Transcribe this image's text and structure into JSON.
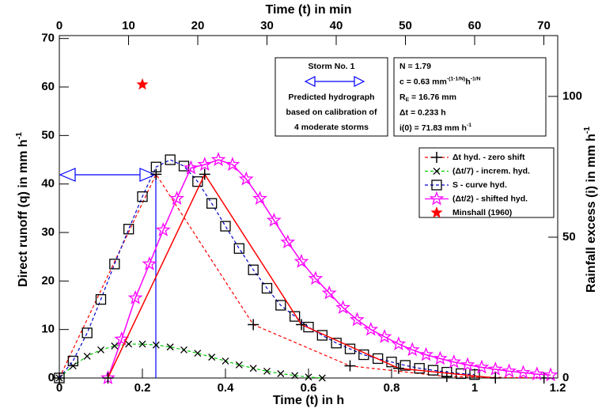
{
  "chart_data": {
    "type": "line",
    "xlabel": "Time (t) in h",
    "x2label": "Time (t) in min",
    "ylabel": [
      {
        "t": "Direct runoff (q) in mm h"
      },
      {
        "sup": "-1"
      }
    ],
    "y2label": [
      {
        "t": "Rainfall excess (i) in mm h"
      },
      {
        "sup": "-1"
      }
    ],
    "xlim": [
      0,
      1.2
    ],
    "xticks": [
      0,
      0.2,
      0.4,
      0.6,
      0.8,
      1,
      1.2
    ],
    "x2lim": [
      0,
      72
    ],
    "x2ticks": [
      0,
      10,
      20,
      30,
      40,
      50,
      60,
      70
    ],
    "ylim": [
      0,
      70.6
    ],
    "yticks": [
      0,
      10,
      20,
      30,
      40,
      50,
      60,
      70
    ],
    "y2lim": [
      0,
      121.6
    ],
    "y2ticks": [
      0,
      50,
      100
    ],
    "legend": "upper right",
    "series": [
      {
        "name": "Δt hyd. - zero shift",
        "color": "#ff0000",
        "dash": true,
        "marker": "plus",
        "marker_color": "#000000",
        "x": [
          0,
          0.233,
          0.467,
          0.7,
          0.933,
          1.167
        ],
        "values": [
          0,
          42,
          11,
          2.5,
          0.3,
          0
        ]
      },
      {
        "name": "(Δt/7) - increm. hyd.",
        "color": "#00cc00",
        "dash": true,
        "marker": "cross",
        "marker_color": "#000000",
        "x": [
          0,
          0.033,
          0.067,
          0.1,
          0.133,
          0.167,
          0.2,
          0.233,
          0.267,
          0.3,
          0.333,
          0.367,
          0.4,
          0.433,
          0.467,
          0.5,
          0.533,
          0.567,
          0.6,
          0.633
        ],
        "values": [
          0,
          2.5,
          4.5,
          5.8,
          6.6,
          7,
          7,
          6.8,
          6.4,
          5.8,
          5.1,
          4.3,
          3.5,
          2.7,
          2,
          1.4,
          0.9,
          0.5,
          0.2,
          0
        ]
      },
      {
        "name": "S - curve hyd.",
        "color": "#0000cc",
        "dash": true,
        "marker": "square",
        "marker_color": "#000000",
        "x": [
          0,
          0.033,
          0.067,
          0.1,
          0.133,
          0.167,
          0.2,
          0.233,
          0.267,
          0.3,
          0.333,
          0.367,
          0.4,
          0.433,
          0.467,
          0.5,
          0.533,
          0.567,
          0.6,
          0.633,
          0.667,
          0.7,
          0.733,
          0.767,
          0.8,
          0.833,
          0.867,
          0.9,
          0.933,
          0.967,
          1.0
        ],
        "values": [
          0,
          3.5,
          9.3,
          16.2,
          23.5,
          30.7,
          37.4,
          43.5,
          45,
          43.7,
          40.5,
          36,
          31.3,
          26.7,
          22.3,
          18.5,
          15,
          12.7,
          10.5,
          8.8,
          7.2,
          6,
          4.8,
          4,
          3.3,
          2.6,
          2,
          1.6,
          1.2,
          0.9,
          0.7
        ]
      },
      {
        "name": "(Δt/2) - shifted hyd.",
        "color": "#ff00ff",
        "dash": false,
        "marker": "open-star",
        "marker_color": "#ff00ff",
        "x": [
          0.117,
          0.15,
          0.183,
          0.217,
          0.25,
          0.283,
          0.317,
          0.35,
          0.383,
          0.417,
          0.45,
          0.483,
          0.517,
          0.55,
          0.583,
          0.617,
          0.65,
          0.683,
          0.717,
          0.75,
          0.783,
          0.817,
          0.85,
          0.883,
          0.917,
          0.95,
          0.983,
          1.017,
          1.05,
          1.083,
          1.117,
          1.15,
          1.183
        ],
        "values": [
          0,
          8,
          16.5,
          23.5,
          30.5,
          37,
          43.3,
          44,
          45,
          44,
          41,
          37,
          32.5,
          28,
          24,
          20.5,
          17.5,
          14.5,
          12,
          10,
          8.5,
          7,
          5.8,
          4.8,
          4,
          3.3,
          2.7,
          2.2,
          1.8,
          1.4,
          1.1,
          0.8,
          0.6
        ]
      },
      {
        "name": "Minshall (1960)",
        "color": "#ff0000",
        "dash": false,
        "line": false,
        "marker": "star",
        "marker_color": "#ff0000",
        "x": [
          0.2
        ],
        "values": [
          60.5
        ]
      },
      {
        "color": "#ff0000",
        "dash": false,
        "marker": "plus",
        "marker_color": "#000000",
        "x": [
          0.117,
          0.35,
          0.583,
          0.817,
          1.05
        ],
        "values": [
          0,
          42,
          11,
          2,
          0
        ]
      }
    ],
    "annotations": {
      "storm_box": {
        "title": "Storm No. 1",
        "lines": [
          "Predicted hydrograph",
          "based on calibration of",
          "4 moderate storms"
        ]
      },
      "params_box": [
        [
          {
            "t": "N = 1.79"
          }
        ],
        [
          {
            "t": "c = 0.63 mm"
          },
          {
            "sup": "-(1-1/N)"
          },
          {
            "t": "h"
          },
          {
            "sup": "-1/N"
          }
        ],
        [
          {
            "t": "R"
          },
          {
            "sub": "E"
          },
          {
            "t": " = 16.76 mm"
          }
        ],
        [
          {
            "t": "Δt = 0.233 h"
          }
        ],
        [
          {
            "t": "i(0) = 71.83 mm h"
          },
          {
            "sup": "-1"
          }
        ]
      ]
    }
  }
}
